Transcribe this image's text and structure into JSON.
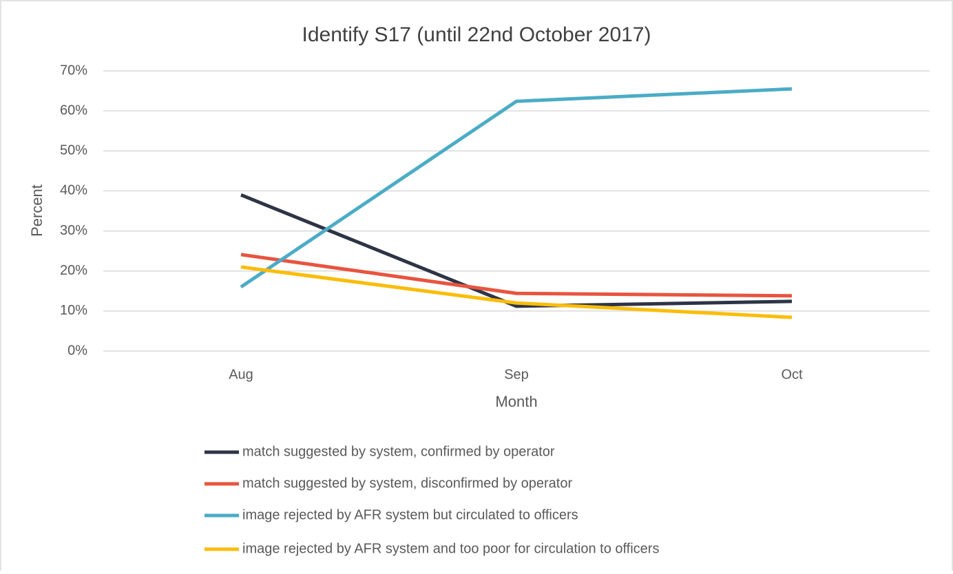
{
  "chart_data": {
    "type": "line",
    "title": "Identify S17 (until 22nd October 2017)",
    "xlabel": "Month",
    "ylabel": "Percent",
    "categories": [
      "Aug",
      "Sep",
      "Oct"
    ],
    "series": [
      {
        "name": "match suggested by system, confirmed by operator",
        "color": "#2e3446",
        "values": [
          39.0,
          11.2,
          12.4
        ]
      },
      {
        "name": "match suggested by system, disconfirmed by operator",
        "color": "#e8543f",
        "values": [
          24.1,
          14.4,
          13.8
        ]
      },
      {
        "name": "image rejected by AFR system but circulated to officers",
        "color": "#4bacc6",
        "values": [
          16.0,
          62.4,
          65.5
        ]
      },
      {
        "name": "image rejected by AFR system and too poor for circulation to officers",
        "color": "#fbbd0a",
        "values": [
          21.0,
          12.0,
          8.4
        ]
      }
    ],
    "ylim": [
      0,
      70
    ],
    "yticks": [
      {
        "value": 0,
        "label": "0%"
      },
      {
        "value": 10,
        "label": "10%"
      },
      {
        "value": 20,
        "label": "20%"
      },
      {
        "value": 30,
        "label": "30%"
      },
      {
        "value": 40,
        "label": "40%"
      },
      {
        "value": 50,
        "label": "50%"
      },
      {
        "value": 60,
        "label": "60%"
      },
      {
        "value": 70,
        "label": "70%"
      }
    ],
    "grid": true,
    "legend": "bottom"
  }
}
